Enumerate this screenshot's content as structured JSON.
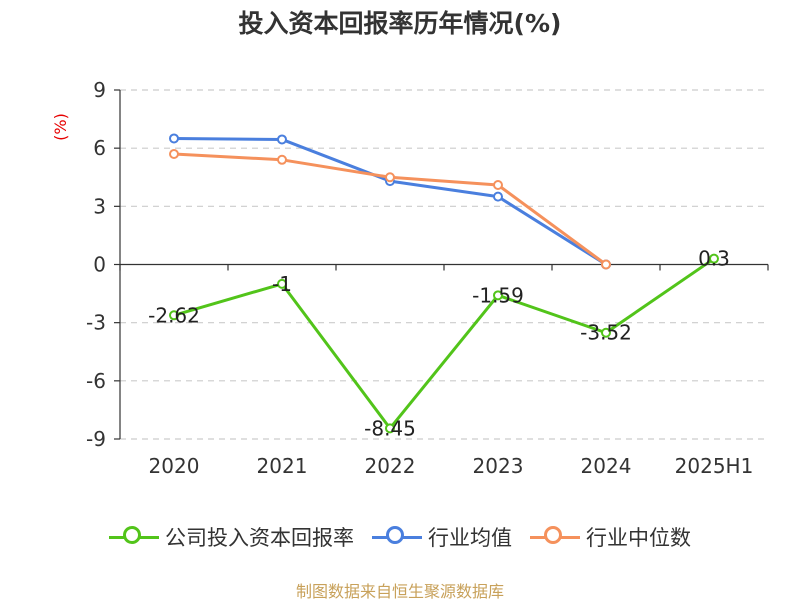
{
  "chart_data": {
    "type": "line",
    "title": "投入资本回报率历年情况(%)",
    "ylabel": "(%)",
    "xlabel": "",
    "categories": [
      "2020",
      "2021",
      "2022",
      "2023",
      "2024",
      "2025H1"
    ],
    "ylim": [
      -9,
      9
    ],
    "yticks": [
      9,
      6,
      3,
      0,
      -3,
      -6,
      -9
    ],
    "grid": true,
    "legend_position": "bottom",
    "series": [
      {
        "name": "公司投入资本回报率",
        "color": "#52c41a",
        "values": [
          -2.62,
          -1,
          -8.45,
          -1.59,
          -3.52,
          0.3
        ],
        "labels": [
          "-2.62",
          "-1",
          "-8.45",
          "-1.59",
          "-3.52",
          "0.3"
        ],
        "show_labels": true
      },
      {
        "name": "行业均值",
        "color": "#4a7fde",
        "values": [
          6.5,
          6.45,
          4.3,
          3.5,
          0,
          null
        ],
        "show_labels": false
      },
      {
        "name": "行业中位数",
        "color": "#f5915c",
        "values": [
          5.7,
          5.4,
          4.5,
          4.1,
          0,
          null
        ],
        "show_labels": false
      }
    ]
  },
  "source": "制图数据来自恒生聚源数据库",
  "colors": {
    "axis": "#333333",
    "grid": "#cccccc",
    "ylabel": "#e60000",
    "source": "#c8a15a"
  }
}
